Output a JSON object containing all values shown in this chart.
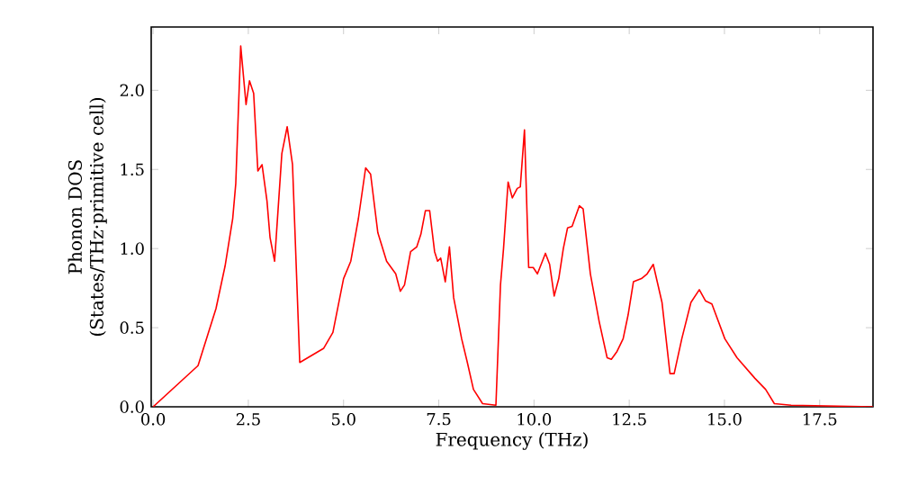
{
  "chart_data": {
    "type": "line",
    "xlabel": "Frequency (THz)",
    "ylabel": "Phonon DOS (States/THz·primitive cell)",
    "xlim": [
      -0.05,
      18.9
    ],
    "ylim": [
      0,
      2.4
    ],
    "xticks": [
      {
        "value": 0,
        "label": "0.0"
      },
      {
        "value": 2.5,
        "label": "2.5"
      },
      {
        "value": 5,
        "label": "5.0"
      },
      {
        "value": 7.5,
        "label": "7.5"
      },
      {
        "value": 10,
        "label": "10.0"
      },
      {
        "value": 12.5,
        "label": "12.5"
      },
      {
        "value": 15,
        "label": "15.0"
      },
      {
        "value": 17.5,
        "label": "17.5"
      }
    ],
    "yticks": [
      {
        "value": 0,
        "label": "0.0"
      },
      {
        "value": 0.5,
        "label": "0.5"
      },
      {
        "value": 1,
        "label": "1.0"
      },
      {
        "value": 1.5,
        "label": "1.5"
      },
      {
        "value": 2,
        "label": "2.0"
      }
    ],
    "series": [
      {
        "color": "#ff0000",
        "x": [
          0,
          1.18,
          1.65,
          1.89,
          2.09,
          2.17,
          2.3,
          2.44,
          2.53,
          2.64,
          2.75,
          2.86,
          2.99,
          3.07,
          3.19,
          3.38,
          3.52,
          3.66,
          3.85,
          4.48,
          4.72,
          5.0,
          5.19,
          5.39,
          5.58,
          5.71,
          5.9,
          6.13,
          6.37,
          6.49,
          6.6,
          6.76,
          6.92,
          7.03,
          7.15,
          7.26,
          7.39,
          7.47,
          7.55,
          7.67,
          7.78,
          7.89,
          8.1,
          8.25,
          8.41,
          8.65,
          9.0,
          9.12,
          9.2,
          9.32,
          9.43,
          9.56,
          9.64,
          9.75,
          9.86,
          9.98,
          10.09,
          10.22,
          10.3,
          10.41,
          10.53,
          10.65,
          10.77,
          10.88,
          11.0,
          11.19,
          11.29,
          11.48,
          11.71,
          11.92,
          12.03,
          12.18,
          12.34,
          12.47,
          12.61,
          12.82,
          12.97,
          13.13,
          13.36,
          13.57,
          13.68,
          13.88,
          14.12,
          14.34,
          14.5,
          14.67,
          15.01,
          15.33,
          15.8,
          16.08,
          16.31,
          16.75,
          18.9
        ],
        "values": [
          0,
          0.26,
          0.62,
          0.89,
          1.19,
          1.41,
          2.28,
          1.91,
          2.06,
          1.98,
          1.49,
          1.53,
          1.3,
          1.07,
          0.92,
          1.6,
          1.77,
          1.53,
          0.28,
          0.37,
          0.47,
          0.81,
          0.92,
          1.19,
          1.51,
          1.47,
          1.1,
          0.92,
          0.84,
          0.73,
          0.77,
          0.98,
          1.01,
          1.09,
          1.24,
          1.24,
          0.98,
          0.92,
          0.94,
          0.79,
          1.01,
          0.69,
          0.43,
          0.28,
          0.11,
          0.02,
          0.01,
          0.77,
          1.0,
          1.42,
          1.32,
          1.38,
          1.39,
          1.75,
          0.88,
          0.88,
          0.84,
          0.92,
          0.97,
          0.9,
          0.7,
          0.81,
          1.0,
          1.13,
          1.14,
          1.27,
          1.25,
          0.84,
          0.54,
          0.31,
          0.3,
          0.35,
          0.43,
          0.58,
          0.79,
          0.81,
          0.84,
          0.9,
          0.66,
          0.21,
          0.21,
          0.43,
          0.66,
          0.74,
          0.67,
          0.65,
          0.43,
          0.31,
          0.18,
          0.11,
          0.02,
          0.01,
          0
        ]
      }
    ]
  }
}
